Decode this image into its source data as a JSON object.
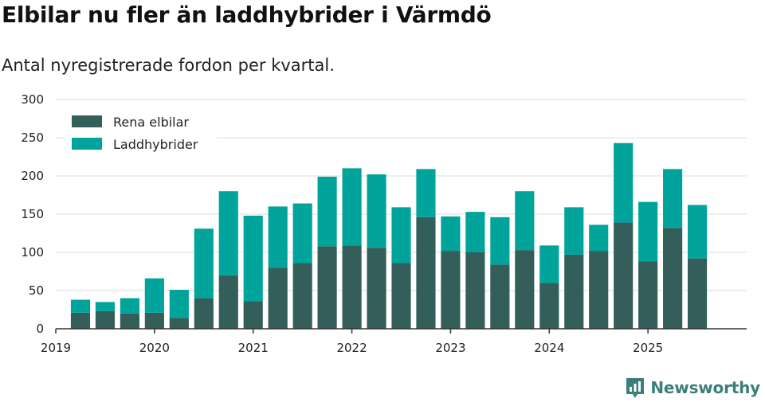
{
  "header": {
    "title": "Elbilar nu fler än laddhybrider i Värmdö",
    "subtitle": "Antal nyregistrerade fordon per kvartal."
  },
  "brand": {
    "name": "Newsworthy"
  },
  "colors": {
    "electric": "#335e59",
    "hybrid": "#00a49a",
    "grid": "#dddddd",
    "axis": "#333333"
  },
  "chart_data": {
    "type": "bar",
    "stacked": true,
    "title": "Elbilar nu fler än laddhybrider i Värmdö",
    "subtitle": "Antal nyregistrerade fordon per kvartal.",
    "xlabel": "",
    "ylabel": "",
    "ylim": [
      0,
      300
    ],
    "yticks": [
      0,
      50,
      100,
      150,
      200,
      250,
      300
    ],
    "xlim": [
      2019,
      2026
    ],
    "xticks": [
      2019,
      2020,
      2021,
      2022,
      2023,
      2024,
      2025
    ],
    "x": [
      2019.25,
      2019.5,
      2019.75,
      2020.0,
      2020.25,
      2020.5,
      2020.75,
      2021.0,
      2021.25,
      2021.5,
      2021.75,
      2022.0,
      2022.25,
      2022.5,
      2022.75,
      2023.0,
      2023.25,
      2023.5,
      2023.75,
      2024.0,
      2024.25,
      2024.5,
      2024.75,
      2025.0,
      2025.25,
      2025.5
    ],
    "legend_position": "top-left",
    "series": [
      {
        "name": "Rena elbilar",
        "color": "#335e59",
        "values": [
          21,
          23,
          20,
          21,
          14,
          40,
          70,
          36,
          80,
          86,
          108,
          109,
          106,
          86,
          146,
          102,
          100,
          84,
          103,
          60,
          97,
          102,
          139,
          88,
          132,
          92
        ]
      },
      {
        "name": "Laddhybrider",
        "color": "#00a49a",
        "values": [
          17,
          12,
          20,
          45,
          37,
          91,
          110,
          112,
          80,
          78,
          91,
          101,
          96,
          73,
          63,
          45,
          53,
          62,
          77,
          49,
          62,
          34,
          104,
          78,
          77,
          70
        ]
      }
    ]
  }
}
